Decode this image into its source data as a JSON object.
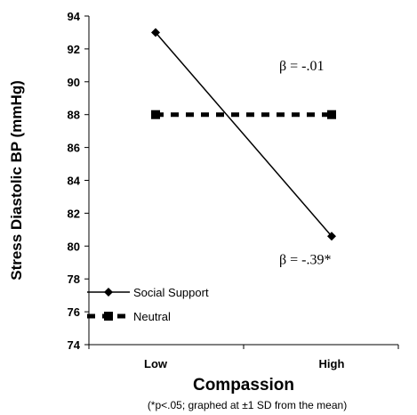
{
  "chart_data": {
    "type": "line",
    "xlabel": "Compassion",
    "ylabel": "Stress Diastolic BP (mmHg)",
    "categories": [
      "Low",
      "High"
    ],
    "ylim": [
      74,
      94
    ],
    "yticks": [
      74,
      76,
      78,
      80,
      82,
      84,
      86,
      88,
      90,
      92,
      94
    ],
    "grid": false,
    "legend_position": "bottom-left",
    "series": [
      {
        "name": "Social Support",
        "values": [
          93,
          80.6
        ],
        "color": "#000000",
        "line_style": "solid",
        "marker": "diamond"
      },
      {
        "name": "Neutral",
        "values": [
          88,
          88
        ],
        "color": "#000000",
        "line_style": "dashed",
        "marker": "square"
      }
    ],
    "annotations": [
      {
        "text": "β = -.01",
        "series": "Neutral"
      },
      {
        "text": "β = -.39*",
        "series": "Social Support"
      }
    ],
    "footnote": "(*p<.05; graphed at ±1 SD from the mean)"
  }
}
